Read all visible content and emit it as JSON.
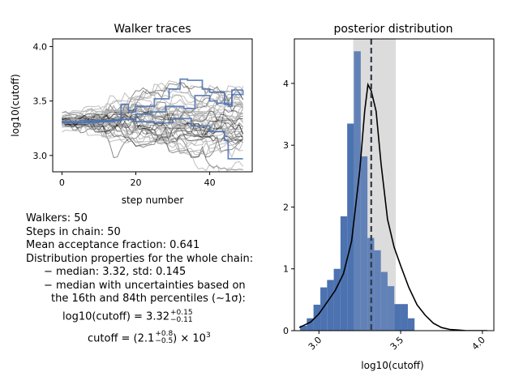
{
  "chart_data": [
    {
      "type": "line",
      "title": "Walker traces",
      "xlabel": "step number",
      "ylabel": "log10(cutoff)",
      "xlim": [
        -2.5,
        51.5
      ],
      "ylim": [
        2.85,
        4.07
      ],
      "xticks": [
        0,
        20,
        40
      ],
      "yticks": [
        3.0,
        3.5,
        4.0
      ],
      "n_walkers": 50,
      "n_steps": 50,
      "start_value": 3.31,
      "gray_color": "#a9a9a9",
      "black_color": "#000000",
      "highlight_color": "#4c72b0",
      "highlight_series": [
        {
          "x": [
            0,
            5,
            10,
            14,
            16,
            18,
            20,
            25,
            29,
            32,
            34,
            38,
            40,
            44,
            46,
            49
          ],
          "y": [
            3.3,
            3.32,
            3.31,
            3.33,
            3.47,
            3.4,
            3.45,
            3.52,
            3.61,
            3.7,
            3.69,
            3.61,
            3.58,
            3.47,
            3.6,
            3.6
          ]
        },
        {
          "x": [
            0,
            6,
            12,
            16,
            20,
            24,
            28,
            33,
            36,
            40,
            42,
            45,
            46,
            49
          ],
          "y": [
            3.3,
            3.31,
            3.32,
            3.33,
            3.38,
            3.4,
            3.45,
            3.43,
            3.55,
            3.5,
            3.48,
            3.45,
            3.56,
            3.6
          ]
        },
        {
          "x": [
            0,
            5,
            10,
            15,
            20,
            25,
            30,
            35,
            40,
            44,
            45,
            49
          ],
          "y": [
            3.31,
            3.3,
            3.32,
            3.33,
            3.31,
            3.3,
            3.34,
            3.27,
            3.22,
            3.14,
            2.97,
            2.97
          ]
        }
      ]
    },
    {
      "type": "bar",
      "title": "posterior distribution",
      "xlabel": "log10(cutoff)",
      "xlim": [
        2.85,
        4.07
      ],
      "ylim": [
        0,
        4.72
      ],
      "xticks": [
        3.0,
        3.5,
        4.0
      ],
      "yticks": [
        0,
        1,
        2,
        3,
        4
      ],
      "bin_edges": [
        2.885,
        2.926,
        2.967,
        3.009,
        3.05,
        3.091,
        3.132,
        3.173,
        3.214,
        3.256,
        3.297,
        3.338,
        3.379,
        3.42,
        3.461,
        3.502,
        3.544,
        3.585,
        3.626,
        3.667,
        3.708,
        3.749
      ],
      "bin_heights": [
        0.08,
        0.2,
        0.42,
        0.7,
        0.82,
        1.0,
        1.85,
        3.35,
        4.52,
        2.82,
        1.5,
        1.3,
        0.95,
        0.72,
        0.43,
        0.43,
        0.2,
        0.0,
        0.0,
        0.0,
        0.0
      ],
      "bar_color": "#4c72b0",
      "interval": [
        3.21,
        3.47
      ],
      "interval_color": "#dcdcdc",
      "median": 3.32,
      "kde": {
        "x": [
          2.88,
          2.95,
          3.0,
          3.05,
          3.1,
          3.15,
          3.2,
          3.25,
          3.28,
          3.3,
          3.32,
          3.35,
          3.38,
          3.42,
          3.46,
          3.5,
          3.55,
          3.6,
          3.65,
          3.7,
          3.75,
          3.8,
          3.85,
          3.9,
          3.95,
          4.0,
          4.03
        ],
        "y": [
          0.05,
          0.14,
          0.27,
          0.46,
          0.65,
          0.92,
          1.45,
          2.6,
          3.55,
          3.98,
          3.88,
          3.55,
          2.7,
          1.8,
          1.35,
          1.05,
          0.7,
          0.42,
          0.25,
          0.12,
          0.05,
          0.02,
          0.01,
          0.0,
          0.0,
          0.0,
          0.0
        ]
      }
    }
  ],
  "info": {
    "walkers": "Walkers: 50",
    "steps": "Steps in chain: 50",
    "acceptance": "Mean acceptance fraction: 0.641",
    "dist_header": "Distribution properties for the whole chain:",
    "median_std": "− median: 3.32, std: 0.145",
    "uncert_line1": "− median with uncertainties based on",
    "uncert_line2": "the 16th and 84th percentiles (∼1σ):",
    "log_eq_prefix": "log10(cutoff) = 3.32",
    "log_eq_sup": "+0.15",
    "log_eq_sub": "−0.11",
    "cut_eq_prefix": "cutoff = (2.1",
    "cut_eq_sup": "+0.8",
    "cut_eq_sub": "−0.5",
    "cut_eq_suffix": ") × 10",
    "cut_eq_exp": "3"
  }
}
